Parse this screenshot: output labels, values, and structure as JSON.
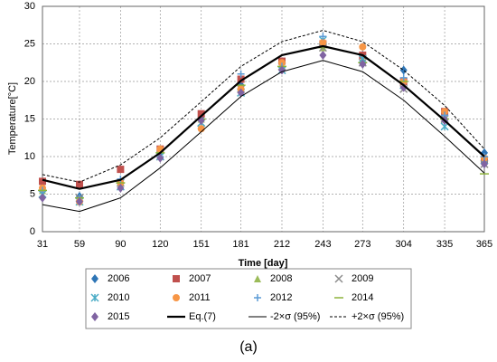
{
  "chart_data": {
    "type": "scatter",
    "x_label": "Time [day]",
    "y_label": "Temperature[°C]",
    "caption": "(a)",
    "x": [
      31,
      59,
      90,
      120,
      151,
      181,
      212,
      243,
      273,
      304,
      335,
      365
    ],
    "xlim": [
      31,
      365
    ],
    "xticks": [
      31,
      59,
      90,
      120,
      151,
      181,
      212,
      243,
      273,
      304,
      335,
      365
    ],
    "ylim": [
      0,
      30
    ],
    "yticks": [
      0,
      5,
      10,
      15,
      20,
      25,
      30
    ],
    "grid": true,
    "series": [
      {
        "name": "2006",
        "color": "#2e75b6",
        "marker": "diamond",
        "values": [
          6.5,
          4.7,
          6.5,
          10.5,
          15.3,
          19.5,
          22.5,
          25.0,
          23.5,
          21.5,
          15.0,
          10.5
        ]
      },
      {
        "name": "2007",
        "color": "#c0504d",
        "marker": "square",
        "values": [
          6.7,
          6.3,
          8.3,
          11.0,
          15.7,
          20.3,
          22.7,
          25.0,
          23.5,
          20.0,
          16.0,
          9.5
        ]
      },
      {
        "name": "2008",
        "color": "#9bbb59",
        "marker": "triangle",
        "values": [
          5.5,
          4.0,
          6.5,
          11.0,
          15.0,
          19.0,
          22.0,
          24.5,
          23.0,
          19.5,
          15.0,
          9.5
        ]
      },
      {
        "name": "2009",
        "color": "#8c8c8c",
        "marker": "x",
        "values": [
          5.0,
          4.5,
          6.5,
          10.0,
          14.5,
          19.0,
          22.0,
          24.5,
          22.5,
          19.0,
          15.0,
          9.0
        ]
      },
      {
        "name": "2010",
        "color": "#4bacc6",
        "marker": "asterisk",
        "values": [
          5.0,
          4.0,
          6.0,
          10.0,
          14.5,
          18.5,
          21.5,
          25.5,
          23.0,
          19.5,
          14.0,
          9.5
        ]
      },
      {
        "name": "2011",
        "color": "#f79646",
        "marker": "circle",
        "values": [
          5.8,
          4.0,
          6.5,
          11.0,
          13.7,
          19.0,
          22.5,
          25.2,
          24.6,
          20.0,
          16.0,
          9.8
        ]
      },
      {
        "name": "2012",
        "color": "#5b9bd5",
        "marker": "plus",
        "values": [
          5.5,
          4.5,
          7.0,
          10.0,
          15.0,
          21.0,
          22.0,
          26.0,
          22.5,
          20.5,
          15.5,
          10.0
        ]
      },
      {
        "name": "2014",
        "color": "#8db33a",
        "marker": "dash",
        "values": [
          5.5,
          4.5,
          6.5,
          10.5,
          15.0,
          19.5,
          22.0,
          24.5,
          22.5,
          20.0,
          15.0,
          7.7
        ]
      },
      {
        "name": "2015",
        "color": "#8064a2",
        "marker": "diamond",
        "values": [
          4.5,
          4.0,
          5.8,
          9.8,
          14.8,
          18.5,
          21.5,
          23.5,
          22.3,
          19.2,
          14.8,
          9.0
        ]
      },
      {
        "name": "Eq.(7)",
        "color": "#000000",
        "line": "solid",
        "width": 2.2,
        "values": [
          6.9,
          5.7,
          6.9,
          10.5,
          15.4,
          20.1,
          23.5,
          24.7,
          23.5,
          19.5,
          14.8,
          10.0
        ]
      },
      {
        "name": "-2×σ (95%)",
        "color": "#000000",
        "line": "solid",
        "width": 1,
        "values": [
          3.6,
          2.7,
          4.5,
          8.5,
          13.3,
          18.0,
          21.3,
          22.8,
          21.3,
          17.5,
          12.7,
          7.8
        ]
      },
      {
        "name": "+2×σ (95%)",
        "color": "#000000",
        "line": "dashed",
        "width": 1,
        "values": [
          7.6,
          6.6,
          8.9,
          12.5,
          17.3,
          22.0,
          25.3,
          26.8,
          25.3,
          21.5,
          16.8,
          11.0
        ]
      }
    ]
  }
}
